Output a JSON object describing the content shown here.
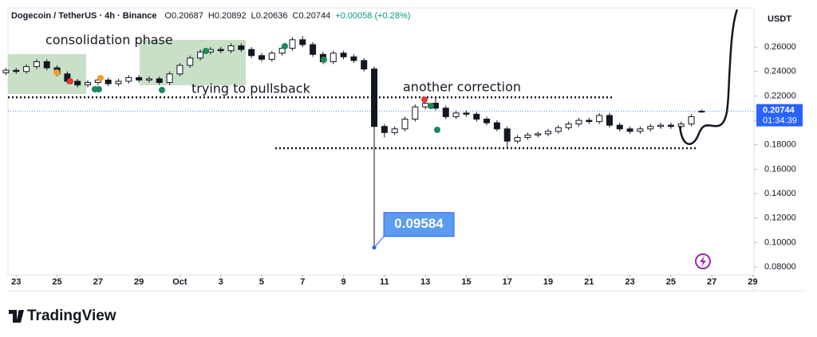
{
  "chart_data": {
    "type": "candlestick",
    "title": "Dogecoin / TetherUS · 4h · Binance",
    "ohlc_labels": [
      "O",
      "H",
      "L",
      "C"
    ],
    "change": "+0.00058 (+0.28%)",
    "currency": "USDT",
    "countdown": "01:34:39",
    "x": [
      -0.5,
      0,
      0.5,
      1,
      1.5,
      2,
      2.5,
      3,
      3.5,
      4,
      4.5,
      5,
      5.5,
      6,
      6.5,
      7,
      7.5,
      8,
      8.5,
      9,
      9.5,
      10,
      10.5,
      11,
      11.5,
      12,
      12.5,
      13,
      13.5,
      14,
      14.5,
      15,
      15.5,
      16,
      16.5,
      17,
      17.5,
      18,
      18.5,
      19,
      19.5,
      20,
      20.5,
      21,
      21.5,
      22,
      22.5,
      23,
      23.5,
      24,
      24.5,
      25,
      25.5,
      26,
      26.5,
      27,
      27.5,
      28,
      28.5,
      29,
      29.5,
      30,
      30.5,
      31,
      31.5,
      32,
      32.5,
      33,
      33.5
    ],
    "open": [
      0.239,
      0.241,
      0.24,
      0.244,
      0.248,
      0.243,
      0.238,
      0.232,
      0.229,
      0.231,
      0.233,
      0.23,
      0.232,
      0.235,
      0.233,
      0.234,
      0.231,
      0.238,
      0.245,
      0.251,
      0.256,
      0.258,
      0.257,
      0.261,
      0.258,
      0.253,
      0.25,
      0.255,
      0.259,
      0.266,
      0.262,
      0.254,
      0.248,
      0.255,
      0.252,
      0.249,
      0.242,
      0.195,
      0.19,
      0.193,
      0.201,
      0.211,
      0.214,
      0.21,
      0.203,
      0.206,
      0.205,
      0.201,
      0.198,
      0.193,
      0.183,
      0.186,
      0.188,
      0.189,
      0.191,
      0.194,
      0.197,
      0.2,
      0.199,
      0.204,
      0.196,
      0.193,
      0.191,
      0.193,
      0.195,
      0.196,
      0.195,
      0.197,
      0.20687
    ],
    "high": [
      0.243,
      0.243,
      0.246,
      0.25,
      0.25,
      0.245,
      0.24,
      0.234,
      0.233,
      0.235,
      0.235,
      0.234,
      0.237,
      0.237,
      0.236,
      0.236,
      0.24,
      0.247,
      0.253,
      0.258,
      0.26,
      0.26,
      0.263,
      0.263,
      0.26,
      0.255,
      0.257,
      0.261,
      0.268,
      0.269,
      0.264,
      0.256,
      0.257,
      0.257,
      0.254,
      0.251,
      0.244,
      0.197,
      0.195,
      0.203,
      0.213,
      0.216,
      0.219,
      0.212,
      0.208,
      0.208,
      0.207,
      0.203,
      0.2,
      0.195,
      0.188,
      0.19,
      0.191,
      0.193,
      0.196,
      0.199,
      0.202,
      0.202,
      0.206,
      0.206,
      0.198,
      0.195,
      0.195,
      0.197,
      0.198,
      0.198,
      0.199,
      0.205,
      0.20892
    ],
    "low": [
      0.237,
      0.238,
      0.238,
      0.242,
      0.241,
      0.236,
      0.23,
      0.227,
      0.227,
      0.229,
      0.228,
      0.228,
      0.23,
      0.231,
      0.231,
      0.229,
      0.229,
      0.236,
      0.243,
      0.249,
      0.254,
      0.255,
      0.255,
      0.256,
      0.251,
      0.248,
      0.248,
      0.253,
      0.257,
      0.26,
      0.252,
      0.246,
      0.246,
      0.25,
      0.247,
      0.24,
      0.09584,
      0.186,
      0.188,
      0.191,
      0.199,
      0.209,
      0.208,
      0.201,
      0.201,
      0.203,
      0.199,
      0.196,
      0.191,
      0.178,
      0.181,
      0.184,
      0.186,
      0.187,
      0.189,
      0.192,
      0.195,
      0.197,
      0.197,
      0.194,
      0.191,
      0.189,
      0.189,
      0.191,
      0.193,
      0.193,
      0.193,
      0.195,
      0.20636
    ],
    "close": [
      0.241,
      0.24,
      0.244,
      0.248,
      0.243,
      0.238,
      0.232,
      0.229,
      0.231,
      0.233,
      0.23,
      0.232,
      0.235,
      0.233,
      0.234,
      0.231,
      0.238,
      0.245,
      0.251,
      0.256,
      0.258,
      0.257,
      0.261,
      0.258,
      0.253,
      0.25,
      0.255,
      0.259,
      0.266,
      0.262,
      0.254,
      0.248,
      0.255,
      0.252,
      0.249,
      0.242,
      0.195,
      0.19,
      0.193,
      0.201,
      0.211,
      0.214,
      0.21,
      0.203,
      0.206,
      0.205,
      0.201,
      0.198,
      0.193,
      0.183,
      0.186,
      0.188,
      0.189,
      0.191,
      0.194,
      0.197,
      0.2,
      0.199,
      0.204,
      0.196,
      0.193,
      0.191,
      0.193,
      0.195,
      0.196,
      0.195,
      0.197,
      0.203,
      0.20744
    ],
    "up_color": "#131722",
    "down_color": "#131722",
    "last_price_color": "#2962ff",
    "xlim": [
      -0.4,
      36.06
    ],
    "xticks": [
      {
        "value": 0,
        "label": "23"
      },
      {
        "value": 2,
        "label": "25"
      },
      {
        "value": 4,
        "label": "27"
      },
      {
        "value": 6,
        "label": "29"
      },
      {
        "value": 8,
        "label": "Oct"
      },
      {
        "value": 10,
        "label": "3"
      },
      {
        "value": 12,
        "label": "5"
      },
      {
        "value": 14,
        "label": "7"
      },
      {
        "value": 16,
        "label": "9"
      },
      {
        "value": 18,
        "label": "11"
      },
      {
        "value": 20,
        "label": "13"
      },
      {
        "value": 22,
        "label": "15"
      },
      {
        "value": 24,
        "label": "17"
      },
      {
        "value": 26,
        "label": "19"
      },
      {
        "value": 28,
        "label": "21"
      },
      {
        "value": 30,
        "label": "23"
      },
      {
        "value": 32,
        "label": "25"
      },
      {
        "value": 34,
        "label": "27"
      },
      {
        "value": 36,
        "label": "29"
      }
    ],
    "ylim": [
      0.0735,
      0.292
    ],
    "yticks": [
      {
        "value": 0.08,
        "label": "0.08000"
      },
      {
        "value": 0.1,
        "label": "0.10000"
      },
      {
        "value": 0.12,
        "label": "0.12000"
      },
      {
        "value": 0.14,
        "label": "0.14000"
      },
      {
        "value": 0.16,
        "label": "0.16000"
      },
      {
        "value": 0.18,
        "label": "0.18000"
      },
      {
        "value": 0.2,
        "label": "0.20000"
      },
      {
        "value": 0.22,
        "label": "0.22000"
      },
      {
        "value": 0.24,
        "label": "0.24000"
      },
      {
        "value": 0.26,
        "label": "0.26000"
      }
    ],
    "levels": [
      0.2189,
      0.1772
    ],
    "level_color": "#131722",
    "annotations": [
      "consolidation phase",
      "trying to pullsback",
      "another correction"
    ]
  },
  "brand": "TradingView"
}
